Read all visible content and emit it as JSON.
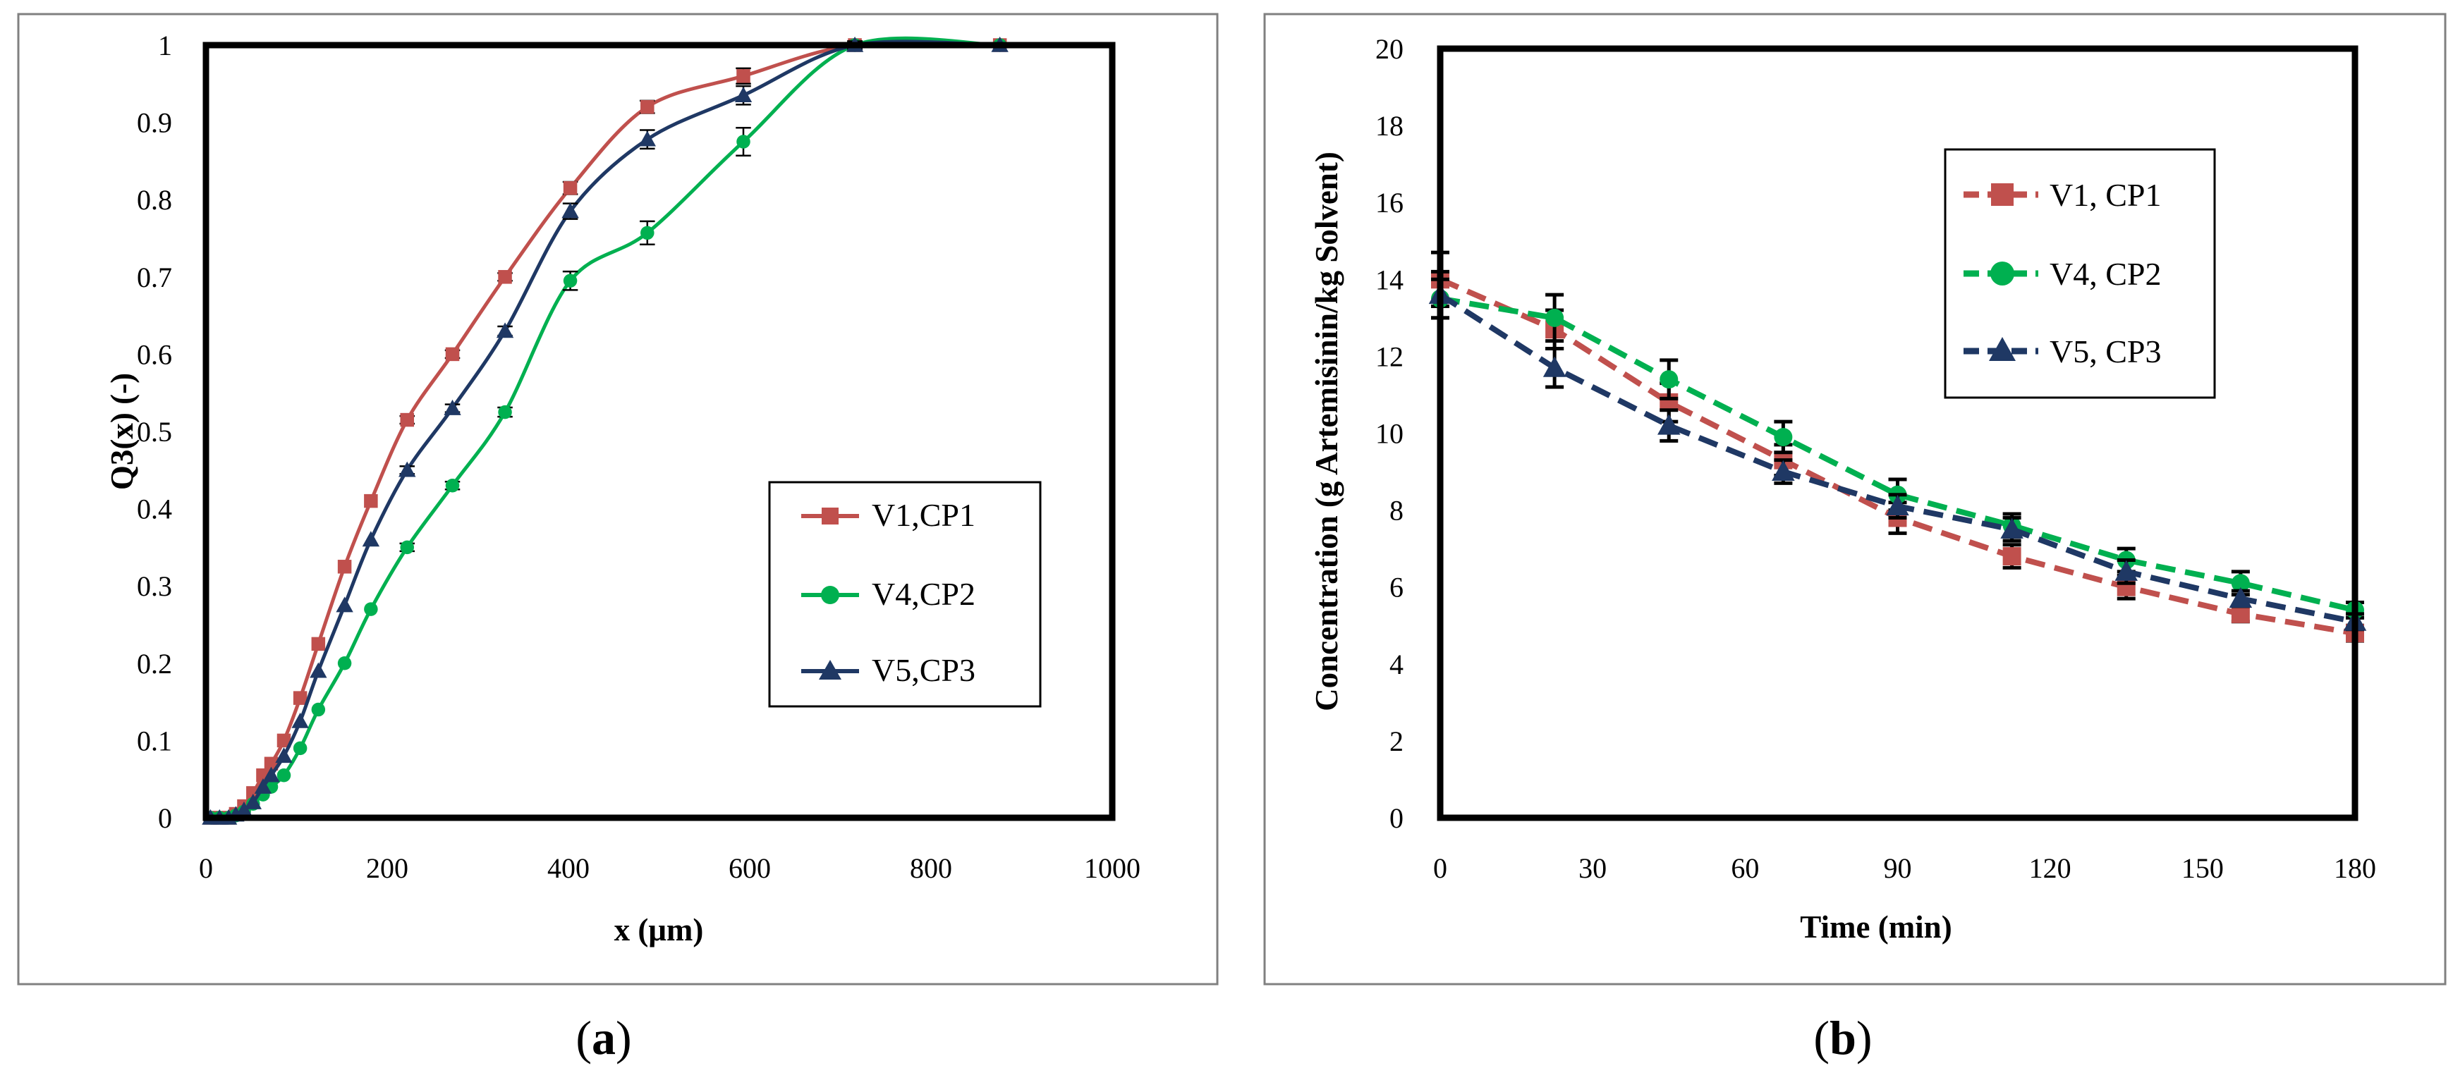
{
  "panels": [
    {
      "id": "a",
      "caption_letter": "a",
      "caption": "(a)"
    },
    {
      "id": "b",
      "caption_letter": "b",
      "caption": "(b)"
    }
  ],
  "chart_data": [
    {
      "type": "line",
      "panel": "a",
      "title": "",
      "xlabel": "x (μm)",
      "ylabel": "Q3(x) (-)",
      "xlim": [
        0,
        1000
      ],
      "ylim": [
        0,
        1
      ],
      "xticks": [
        0,
        200,
        400,
        600,
        800,
        1000
      ],
      "yticks": [
        0,
        0.1,
        0.2,
        0.3,
        0.4,
        0.5,
        0.6,
        0.7,
        0.8,
        0.9,
        1
      ],
      "xtick_labels": [
        "0",
        "200",
        "400",
        "600",
        "800",
        "1000"
      ],
      "ytick_labels": [
        "0",
        "0.1",
        "0.2",
        "0.3",
        "0.4",
        "0.5",
        "0.6",
        "0.7",
        "0.8",
        "0.9",
        "1"
      ],
      "grid": false,
      "legend_position": "center-right",
      "series": [
        {
          "name": "V1,CP1",
          "color": "#c0504d",
          "marker": "square",
          "dash": "solid",
          "x": [
            5,
            15,
            25,
            33,
            42,
            52,
            63,
            72,
            86,
            104,
            124,
            153,
            182,
            222,
            272,
            330,
            402,
            487,
            593,
            716,
            876
          ],
          "y": [
            0,
            0,
            0,
            0.005,
            0.015,
            0.032,
            0.055,
            0.07,
            0.1,
            0.155,
            0.225,
            0.325,
            0.41,
            0.515,
            0.6,
            0.7,
            0.815,
            0.92,
            0.96,
            1,
            1
          ],
          "err": [
            0,
            0,
            0,
            0,
            0,
            0,
            0,
            0,
            0,
            0,
            0,
            0,
            0,
            0.005,
            0.005,
            0.005,
            0.008,
            0.008,
            0.01,
            0.005,
            0
          ]
        },
        {
          "name": "V4,CP2",
          "color": "#00b050",
          "marker": "circle",
          "dash": "solid",
          "x": [
            5,
            15,
            25,
            33,
            42,
            52,
            63,
            72,
            86,
            104,
            124,
            153,
            182,
            222,
            272,
            330,
            402,
            487,
            593,
            716,
            876
          ],
          "y": [
            0,
            0,
            0,
            0.003,
            0.008,
            0.018,
            0.03,
            0.04,
            0.055,
            0.09,
            0.14,
            0.2,
            0.27,
            0.35,
            0.43,
            0.525,
            0.695,
            0.757,
            0.875,
            1,
            1
          ],
          "err": [
            0,
            0,
            0,
            0,
            0,
            0,
            0,
            0,
            0,
            0,
            0,
            0,
            0,
            0.005,
            0.005,
            0.006,
            0.012,
            0.015,
            0.018,
            0.005,
            0
          ]
        },
        {
          "name": "V5,CP3",
          "color": "#1f3864",
          "marker": "triangle",
          "dash": "solid",
          "x": [
            5,
            15,
            25,
            33,
            42,
            52,
            63,
            72,
            86,
            104,
            124,
            153,
            182,
            222,
            272,
            330,
            402,
            487,
            593,
            716,
            876
          ],
          "y": [
            0,
            0,
            0,
            0.004,
            0.01,
            0.02,
            0.04,
            0.055,
            0.08,
            0.125,
            0.19,
            0.275,
            0.36,
            0.45,
            0.53,
            0.63,
            0.785,
            0.878,
            0.935,
            1,
            1
          ],
          "err": [
            0,
            0,
            0,
            0,
            0,
            0,
            0,
            0,
            0,
            0,
            0,
            0,
            0,
            0.005,
            0.005,
            0.006,
            0.01,
            0.012,
            0.012,
            0.005,
            0
          ]
        }
      ]
    },
    {
      "type": "line",
      "panel": "b",
      "title": "",
      "xlabel": "Time (min)",
      "ylabel": "Concentration  (g Artemisinin/kg Solvent)",
      "xlim": [
        0,
        180
      ],
      "ylim": [
        0,
        20
      ],
      "xticks": [
        0,
        30,
        60,
        90,
        120,
        150,
        180
      ],
      "yticks": [
        0,
        2,
        4,
        6,
        8,
        10,
        12,
        14,
        16,
        18,
        20
      ],
      "xtick_labels": [
        "0",
        "30",
        "60",
        "90",
        "120",
        "150",
        "180"
      ],
      "ytick_labels": [
        "0",
        "2",
        "4",
        "6",
        "8",
        "10",
        "12",
        "14",
        "16",
        "18",
        "20"
      ],
      "grid": false,
      "legend_position": "top-right",
      "series": [
        {
          "name": "V1, CP1",
          "color": "#c0504d",
          "marker": "square",
          "dash": "dashed",
          "x": [
            0,
            22.5,
            45,
            67.5,
            90,
            112.5,
            135,
            157.5,
            180
          ],
          "y": [
            14.0,
            12.7,
            10.8,
            9.3,
            7.8,
            6.8,
            6.0,
            5.3,
            4.8
          ],
          "err": [
            0.7,
            0.5,
            0.5,
            0.4,
            0.4,
            0.3,
            0.3,
            0.2,
            0.2
          ]
        },
        {
          "name": "V4, CP2",
          "color": "#00b050",
          "marker": "circle",
          "dash": "dashed",
          "x": [
            0,
            22.5,
            45,
            67.5,
            90,
            112.5,
            135,
            157.5,
            180
          ],
          "y": [
            13.5,
            13.0,
            11.4,
            9.9,
            8.4,
            7.6,
            6.7,
            6.1,
            5.4
          ],
          "err": [
            0.5,
            0.6,
            0.5,
            0.4,
            0.4,
            0.3,
            0.3,
            0.3,
            0.2
          ]
        },
        {
          "name": "V5, CP3",
          "color": "#1f3864",
          "marker": "triangle",
          "dash": "dashed",
          "x": [
            0,
            22.5,
            45,
            67.5,
            90,
            112.5,
            135,
            157.5,
            180
          ],
          "y": [
            13.6,
            11.7,
            10.2,
            9.0,
            8.1,
            7.5,
            6.4,
            5.7,
            5.1
          ],
          "err": [
            0.6,
            0.5,
            0.4,
            0.3,
            0.3,
            0.3,
            0.3,
            0.2,
            0.2
          ]
        }
      ]
    }
  ]
}
